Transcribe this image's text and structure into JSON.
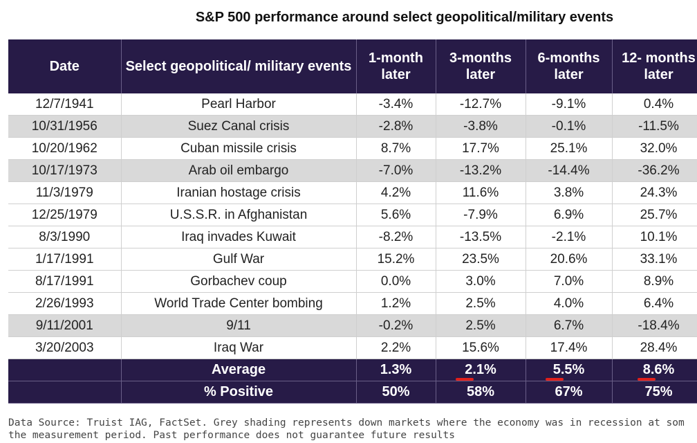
{
  "title": "S&P 500 performance around select geopolitical/military events",
  "table": {
    "header": [
      "Date",
      "Select geopolitical/ military events",
      "1-month later",
      "3-months later",
      "6-months later",
      "12- months later"
    ],
    "rows": [
      [
        "12/7/1941",
        "Pearl Harbor",
        "-3.4%",
        "-12.7%",
        "-9.1%",
        "0.4%"
      ],
      [
        "10/31/1956",
        "Suez Canal crisis",
        "-2.8%",
        "-3.8%",
        "-0.1%",
        "-11.5%"
      ],
      [
        "10/20/1962",
        "Cuban missile crisis",
        "8.7%",
        "17.7%",
        "25.1%",
        "32.0%"
      ],
      [
        "10/17/1973",
        "Arab oil embargo",
        "-7.0%",
        "-13.2%",
        "-14.4%",
        "-36.2%"
      ],
      [
        "11/3/1979",
        "Iranian hostage crisis",
        "4.2%",
        "11.6%",
        "3.8%",
        "24.3%"
      ],
      [
        "12/25/1979",
        "U.S.S.R. in Afghanistan",
        "5.6%",
        "-7.9%",
        "6.9%",
        "25.7%"
      ],
      [
        "8/3/1990",
        "Iraq invades Kuwait",
        "-8.2%",
        "-13.5%",
        "-2.1%",
        "10.1%"
      ],
      [
        "1/17/1991",
        "Gulf War",
        "15.2%",
        "23.5%",
        "20.6%",
        "33.1%"
      ],
      [
        "8/17/1991",
        "Gorbachev coup",
        "0.0%",
        "3.0%",
        "7.0%",
        "8.9%"
      ],
      [
        "2/26/1993",
        "World Trade Center bombing",
        "1.2%",
        "2.5%",
        "4.0%",
        "6.4%"
      ],
      [
        "9/11/2001",
        "9/11",
        "-0.2%",
        "2.5%",
        "6.7%",
        "-18.4%"
      ],
      [
        "3/20/2003",
        "Iraq War",
        "2.2%",
        "15.6%",
        "17.4%",
        "28.4%"
      ]
    ],
    "footer": [
      [
        "Average",
        "1.3%",
        "2.1%",
        "5.5%",
        "8.6%"
      ],
      [
        "% Positive",
        "50%",
        "58%",
        "67%",
        "75%"
      ]
    ]
  },
  "footnote": [
    "Data Source: Truist IAG, FactSet. Grey shading represents down markets where the economy was in recession at som",
    "the measurement period. Past performance does not guarantee future results"
  ]
}
